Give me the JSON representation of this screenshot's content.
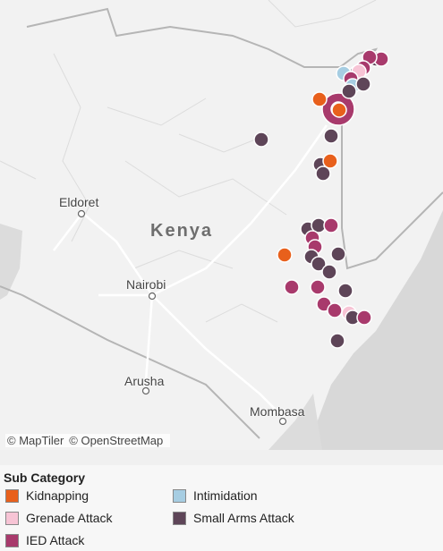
{
  "map": {
    "country_label": "Kenya",
    "cities": [
      {
        "name": "Eldoret"
      },
      {
        "name": "Nairobi"
      },
      {
        "name": "Arusha"
      },
      {
        "name": "Mombasa"
      }
    ],
    "attribution": [
      "© MapTiler",
      "© OpenStreetMap"
    ],
    "incidents": [
      {
        "category": "Small Arms Attack"
      },
      {
        "category": "IED Attack"
      },
      {
        "category": "IED Attack"
      },
      {
        "category": "IED Attack"
      },
      {
        "category": "Small Arms Attack"
      },
      {
        "category": "Intimidation"
      },
      {
        "category": "Grenade Attack"
      },
      {
        "category": "IED Attack"
      },
      {
        "category": "Intimidation"
      },
      {
        "category": "Small Arms Attack"
      },
      {
        "category": "Small Arms Attack"
      },
      {
        "category": "Kidnapping"
      },
      {
        "category": "IED Attack"
      },
      {
        "category": "Kidnapping"
      },
      {
        "category": "Small Arms Attack"
      },
      {
        "category": "Small Arms Attack"
      },
      {
        "category": "Small Arms Attack"
      },
      {
        "category": "Kidnapping"
      },
      {
        "category": "Small Arms Attack"
      },
      {
        "category": "Small Arms Attack"
      },
      {
        "category": "Small Arms Attack"
      },
      {
        "category": "IED Attack"
      },
      {
        "category": "IED Attack"
      },
      {
        "category": "IED Attack"
      },
      {
        "category": "Kidnapping"
      },
      {
        "category": "Small Arms Attack"
      },
      {
        "category": "Small Arms Attack"
      },
      {
        "category": "Small Arms Attack"
      },
      {
        "category": "Small Arms Attack"
      },
      {
        "category": "IED Attack"
      },
      {
        "category": "IED Attack"
      },
      {
        "category": "Small Arms Attack"
      },
      {
        "category": "IED Attack"
      },
      {
        "category": "IED Attack"
      },
      {
        "category": "Grenade Attack"
      },
      {
        "category": "Small Arms Attack"
      },
      {
        "category": "IED Attack"
      },
      {
        "category": "Small Arms Attack"
      }
    ]
  },
  "legend": {
    "title": "Sub Category",
    "items": [
      {
        "label": "Kidnapping",
        "color": "#e8601c"
      },
      {
        "label": "Intimidation",
        "color": "#a6cde2"
      },
      {
        "label": "Grenade Attack",
        "color": "#f7c4d5"
      },
      {
        "label": "Small Arms Attack",
        "color": "#5e4558"
      },
      {
        "label": "IED Attack",
        "color": "#a83a6c"
      }
    ]
  }
}
